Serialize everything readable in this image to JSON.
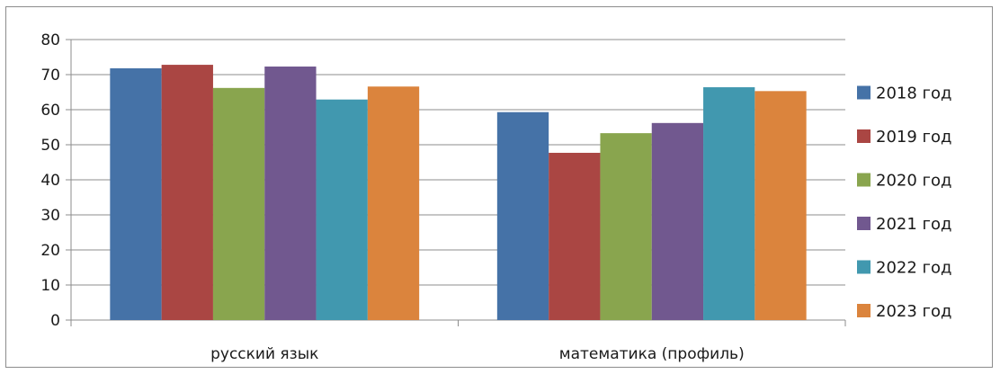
{
  "chart_data": {
    "type": "bar",
    "categories": [
      "русский язык",
      "математика (профиль)"
    ],
    "series": [
      {
        "name": "2018 год",
        "color": "#4572A7",
        "values": [
          71.8,
          59.3
        ]
      },
      {
        "name": "2019 год",
        "color": "#AA4643",
        "values": [
          72.8,
          47.7
        ]
      },
      {
        "name": "2020 год",
        "color": "#89A54E",
        "values": [
          66.2,
          53.3
        ]
      },
      {
        "name": "2021 год",
        "color": "#71588F",
        "values": [
          72.3,
          56.2
        ]
      },
      {
        "name": "2022 год",
        "color": "#4198AF",
        "values": [
          62.9,
          66.4
        ]
      },
      {
        "name": "2023 год",
        "color": "#DB843D",
        "values": [
          66.6,
          65.3
        ]
      }
    ],
    "y_ticks": [
      "0",
      "10",
      "20",
      "30",
      "40",
      "50",
      "60",
      "70",
      "80"
    ],
    "ylim": [
      0,
      80
    ],
    "grid": true,
    "legend_position": "right"
  }
}
